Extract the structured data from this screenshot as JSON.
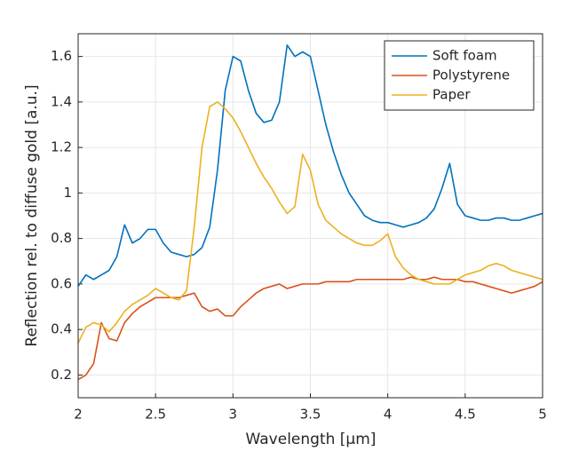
{
  "chart_data": {
    "type": "line",
    "x_label": "Wavelength [µm]",
    "y_label": "Reflection rel. to diffuse gold [a.u.]",
    "x": [
      2.0,
      2.05,
      2.1,
      2.15,
      2.2,
      2.25,
      2.3,
      2.35,
      2.4,
      2.45,
      2.5,
      2.55,
      2.6,
      2.65,
      2.7,
      2.75,
      2.8,
      2.85,
      2.9,
      2.95,
      3.0,
      3.05,
      3.1,
      3.15,
      3.2,
      3.25,
      3.3,
      3.35,
      3.4,
      3.45,
      3.5,
      3.55,
      3.6,
      3.65,
      3.7,
      3.75,
      3.8,
      3.85,
      3.9,
      3.95,
      4.0,
      4.05,
      4.1,
      4.15,
      4.2,
      4.25,
      4.3,
      4.35,
      4.4,
      4.45,
      4.5,
      4.55,
      4.6,
      4.65,
      4.7,
      4.75,
      4.8,
      4.85,
      4.9,
      4.95,
      5.0
    ],
    "series": [
      {
        "name": "Soft foam",
        "color": "#0072bd",
        "values": [
          0.59,
          0.64,
          0.62,
          0.64,
          0.66,
          0.72,
          0.86,
          0.78,
          0.8,
          0.84,
          0.84,
          0.78,
          0.74,
          0.73,
          0.72,
          0.73,
          0.76,
          0.85,
          1.1,
          1.45,
          1.6,
          1.58,
          1.45,
          1.35,
          1.31,
          1.32,
          1.4,
          1.65,
          1.6,
          1.62,
          1.6,
          1.45,
          1.3,
          1.18,
          1.08,
          1.0,
          0.95,
          0.9,
          0.88,
          0.87,
          0.87,
          0.86,
          0.85,
          0.86,
          0.87,
          0.89,
          0.93,
          1.02,
          1.13,
          0.95,
          0.9,
          0.89,
          0.88,
          0.88,
          0.89,
          0.89,
          0.88,
          0.88,
          0.89,
          0.9,
          0.91
        ]
      },
      {
        "name": "Polystyrene",
        "color": "#d95319",
        "values": [
          0.18,
          0.2,
          0.25,
          0.43,
          0.36,
          0.35,
          0.43,
          0.47,
          0.5,
          0.52,
          0.54,
          0.54,
          0.54,
          0.54,
          0.55,
          0.56,
          0.5,
          0.48,
          0.49,
          0.46,
          0.46,
          0.5,
          0.53,
          0.56,
          0.58,
          0.59,
          0.6,
          0.58,
          0.59,
          0.6,
          0.6,
          0.6,
          0.61,
          0.61,
          0.61,
          0.61,
          0.62,
          0.62,
          0.62,
          0.62,
          0.62,
          0.62,
          0.62,
          0.63,
          0.62,
          0.62,
          0.63,
          0.62,
          0.62,
          0.62,
          0.61,
          0.61,
          0.6,
          0.59,
          0.58,
          0.57,
          0.56,
          0.57,
          0.58,
          0.59,
          0.61
        ]
      },
      {
        "name": "Paper",
        "color": "#edb120",
        "values": [
          0.34,
          0.41,
          0.43,
          0.42,
          0.39,
          0.43,
          0.48,
          0.51,
          0.53,
          0.55,
          0.58,
          0.56,
          0.54,
          0.53,
          0.57,
          0.85,
          1.2,
          1.38,
          1.4,
          1.37,
          1.33,
          1.27,
          1.2,
          1.13,
          1.07,
          1.02,
          0.96,
          0.91,
          0.94,
          1.17,
          1.1,
          0.95,
          0.88,
          0.85,
          0.82,
          0.8,
          0.78,
          0.77,
          0.77,
          0.79,
          0.82,
          0.72,
          0.67,
          0.64,
          0.62,
          0.61,
          0.6,
          0.6,
          0.6,
          0.62,
          0.64,
          0.65,
          0.66,
          0.68,
          0.69,
          0.68,
          0.66,
          0.65,
          0.64,
          0.63,
          0.62
        ]
      }
    ],
    "xlim": [
      2,
      5
    ],
    "xticks": [
      2,
      2.5,
      3,
      3.5,
      4,
      4.5,
      5
    ],
    "ylim": [
      0.1,
      1.7
    ],
    "yticks": [
      0.2,
      0.4,
      0.6,
      0.8,
      1,
      1.2,
      1.4,
      1.6
    ],
    "grid": true,
    "legend": "northeast"
  }
}
